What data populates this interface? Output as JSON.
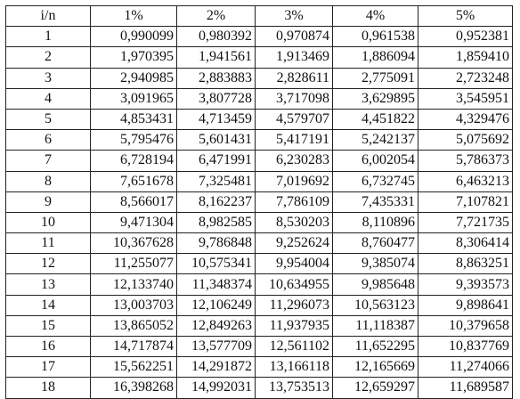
{
  "table": {
    "headers": [
      "i/n",
      "1%",
      "2%",
      "3%",
      "4%",
      "5%"
    ],
    "rows": [
      [
        "1",
        "0,990099",
        "0,980392",
        "0,970874",
        "0,961538",
        "0,952381"
      ],
      [
        "2",
        "1,970395",
        "1,941561",
        "1,913469",
        "1,886094",
        "1,859410"
      ],
      [
        "3",
        "2,940985",
        "2,883883",
        "2,828611",
        "2,775091",
        "2,723248"
      ],
      [
        "4",
        "3,091965",
        "3,807728",
        "3,717098",
        "3,629895",
        "3,545951"
      ],
      [
        "5",
        "4,853431",
        "4,713459",
        "4,579707",
        "4,451822",
        "4,329476"
      ],
      [
        "6",
        "5,795476",
        "5,601431",
        "5,417191",
        "5,242137",
        "5,075692"
      ],
      [
        "7",
        "6,728194",
        "6,471991",
        "6,230283",
        "6,002054",
        "5,786373"
      ],
      [
        "8",
        "7,651678",
        "7,325481",
        "7,019692",
        "6,732745",
        "6,463213"
      ],
      [
        "9",
        "8,566017",
        "8,162237",
        "7,786109",
        "7,435331",
        "7,107821"
      ],
      [
        "10",
        "9,471304",
        "8,982585",
        "8,530203",
        "8,110896",
        "7,721735"
      ],
      [
        "11",
        "10,367628",
        "9,786848",
        "9,252624",
        "8,760477",
        "8,306414"
      ],
      [
        "12",
        "11,255077",
        "10,575341",
        "9,954004",
        "9,385074",
        "8,863251"
      ],
      [
        "13",
        "12,133740",
        "11,348374",
        "10,634955",
        "9,985648",
        "9,393573"
      ],
      [
        "14",
        "13,003703",
        "12,106249",
        "11,296073",
        "10,563123",
        "9,898641"
      ],
      [
        "15",
        "13,865052",
        "12,849263",
        "11,937935",
        "11,118387",
        "10,379658"
      ],
      [
        "16",
        "14,717874",
        "13,577709",
        "12,561102",
        "11,652295",
        "10,837769"
      ],
      [
        "17",
        "15,562251",
        "14,291872",
        "13,166118",
        "12,165669",
        "11,274066"
      ],
      [
        "18",
        "16,398268",
        "14,992031",
        "13,753513",
        "12,659297",
        "11,689587"
      ]
    ]
  }
}
